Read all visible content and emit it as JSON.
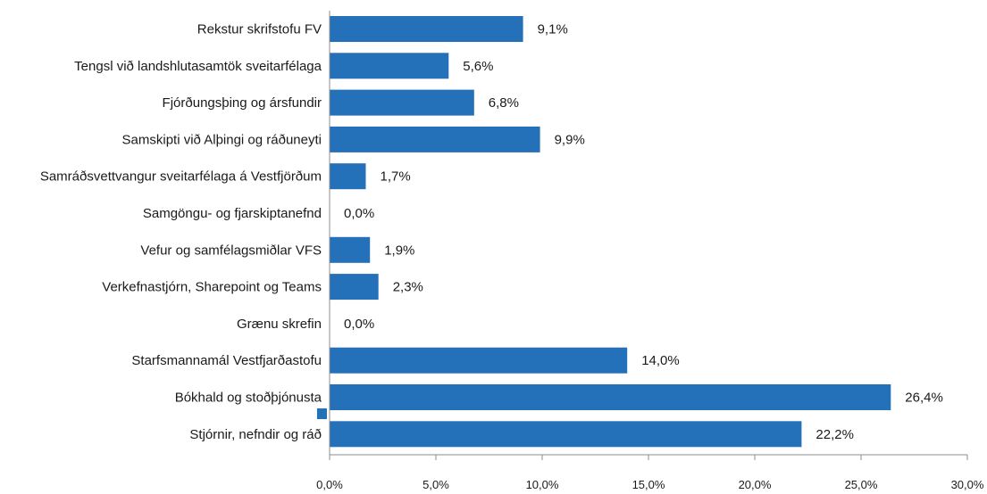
{
  "chart_data": {
    "type": "bar",
    "orientation": "horizontal",
    "title": "",
    "xlabel": "",
    "ylabel": "",
    "categories": [
      "Rekstur skrifstofu FV",
      "Tengsl við landshlutasamtök sveitarfélaga",
      "Fjórðungsþing og ársfundir",
      "Samskipti við Alþingi og ráðuneyti",
      "Samráðsvettvangur sveitarfélaga á Vestfjörðum",
      "Samgöngu- og fjarskiptanefnd",
      "Vefur og samfélagsmiðlar VFS",
      "Verkefnastjórn, Sharepoint og Teams",
      "Grænu skrefin",
      "Starfsmannamál Vestfjarðastofu",
      "Bókhald og stoðþjónusta",
      "Stjórnir, nefndir og ráð"
    ],
    "values": [
      9.1,
      5.6,
      6.8,
      9.9,
      1.7,
      0.0,
      1.9,
      2.3,
      0.0,
      14.0,
      26.4,
      22.2
    ],
    "value_labels": [
      "9,1%",
      "5,6%",
      "6,8%",
      "9,9%",
      "1,7%",
      "0,0%",
      "1,9%",
      "2,3%",
      "0,0%",
      "14,0%",
      "26,4%",
      "22,2%"
    ],
    "xlim": [
      0,
      30
    ],
    "x_ticks": [
      0,
      5,
      10,
      15,
      20,
      25,
      30
    ],
    "x_tick_labels": [
      "0,0%",
      "5,0%",
      "10,0%",
      "15,0%",
      "20,0%",
      "25,0%",
      "30,0%"
    ],
    "grid": false,
    "legend": "left",
    "bar_color": "#2571b9",
    "axis_color": "#8c8c8c"
  }
}
